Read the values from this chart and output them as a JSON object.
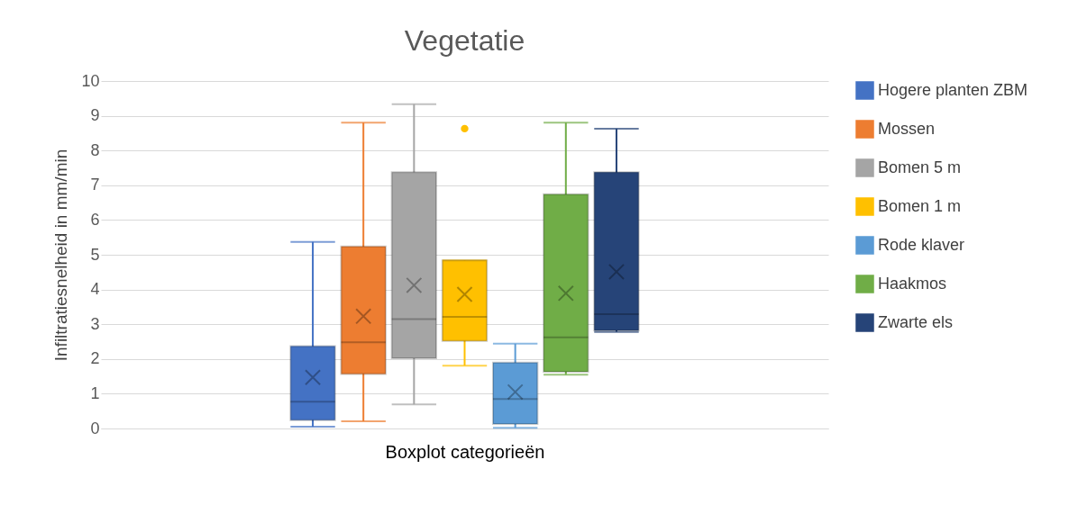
{
  "chart_data": {
    "type": "box",
    "title": "Vegetatie",
    "xlabel": "Boxplot categorieën",
    "ylabel": "Infiltratiesnelheid in mm/min",
    "categories": [
      null
    ],
    "series": [
      {
        "name": "Hogere planten ZBM",
        "color": "#4472c4",
        "boxes": [
          {
            "low": 0.05,
            "q1": 0.24,
            "median": 0.77,
            "q3": 2.37,
            "high": 5.37,
            "mean": 1.47
          }
        ]
      },
      {
        "name": "Mossen",
        "color": "#ed7d31",
        "boxes": [
          {
            "low": 0.21,
            "q1": 1.57,
            "median": 2.48,
            "q3": 5.24,
            "high": 8.8,
            "mean": 3.23
          }
        ]
      },
      {
        "name": "Bomen 5 m",
        "color": "#a5a5a5",
        "boxes": [
          {
            "low": 0.69,
            "q1": 2.02,
            "median": 3.15,
            "q3": 7.38,
            "high": 9.33,
            "mean": 4.12
          }
        ]
      },
      {
        "name": "Bomen 1 m",
        "color": "#ffc000",
        "boxes": [
          {
            "low": 1.81,
            "q1": 2.52,
            "median": 3.21,
            "q3": 4.84,
            "high": 4.84,
            "mean": 3.86,
            "outliers": [
              8.63
            ]
          }
        ]
      },
      {
        "name": "Rode klaver",
        "color": "#5b9bd5",
        "boxes": [
          {
            "low": 0.02,
            "q1": 0.13,
            "median": 0.85,
            "q3": 1.9,
            "high": 2.44,
            "mean": 1.05
          }
        ]
      },
      {
        "name": "Haakmos",
        "color": "#70ad47",
        "boxes": [
          {
            "low": 1.55,
            "q1": 1.63,
            "median": 2.62,
            "q3": 6.74,
            "high": 8.8,
            "mean": 3.89
          }
        ]
      },
      {
        "name": "Zwarte els",
        "color": "#264478",
        "boxes": [
          {
            "low": 2.78,
            "q1": 2.82,
            "median": 3.29,
            "q3": 7.38,
            "high": 8.63,
            "mean": 4.51
          }
        ]
      }
    ],
    "ylim": [
      0,
      10
    ],
    "yticks": [
      0,
      1,
      2,
      3,
      4,
      5,
      6,
      7,
      8,
      9,
      10
    ],
    "grid": "y",
    "legend": "right"
  }
}
